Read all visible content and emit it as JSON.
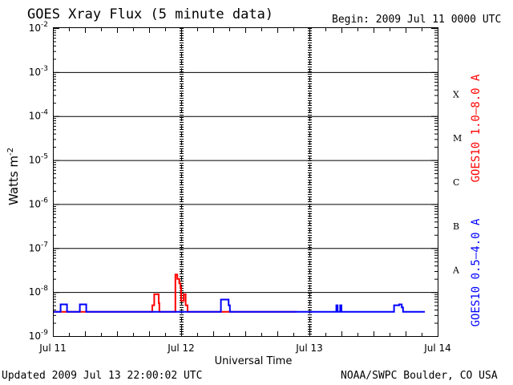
{
  "header": {
    "title": "GOES Xray Flux (5 minute data)",
    "begin": "Begin:  2009 Jul 11 0000 UTC"
  },
  "footer": {
    "updated": "Updated 2009 Jul 13 22:00:02 UTC",
    "credit": "NOAA/SWPC Boulder, CO USA"
  },
  "chart_data": {
    "type": "line",
    "title": "GOES Xray Flux (5 minute data)",
    "xlabel": "Universal Time",
    "ylabel": "Watts m",
    "ylabel_sup": "-2",
    "y_scale": "log",
    "ylim_exp": [
      -9,
      -2
    ],
    "y_ticks": [
      {
        "base": "10",
        "exp": "-9"
      },
      {
        "base": "10",
        "exp": "-8"
      },
      {
        "base": "10",
        "exp": "-7"
      },
      {
        "base": "10",
        "exp": "-6"
      },
      {
        "base": "10",
        "exp": "-5"
      },
      {
        "base": "10",
        "exp": "-4"
      },
      {
        "base": "10",
        "exp": "-3"
      },
      {
        "base": "10",
        "exp": "-2"
      }
    ],
    "xlim_days": [
      0,
      3
    ],
    "x_tick_labels": [
      "Jul 11",
      "Jul 12",
      "Jul 13",
      "Jul 14"
    ],
    "grid": {
      "horizontal": true,
      "vertical_dashed": true
    },
    "flare_classes": [
      {
        "label": "A",
        "log_center": -7.5
      },
      {
        "label": "B",
        "log_center": -6.5
      },
      {
        "label": "C",
        "log_center": -5.5
      },
      {
        "label": "M",
        "log_center": -4.5
      },
      {
        "label": "X",
        "log_center": -3.5
      }
    ],
    "series": [
      {
        "name": "GOES10 1.0–8.0 A",
        "color": "#ff0000",
        "x": [
          0.0,
          0.77,
          0.775,
          0.79,
          0.82,
          0.825,
          0.83,
          0.95,
          0.955,
          0.97,
          0.985,
          0.995,
          1.0,
          1.005,
          1.02,
          1.035,
          1.05,
          1.07,
          1.2,
          1.9
        ],
        "y": [
          -8.45,
          -8.45,
          -8.3,
          -8.05,
          -8.05,
          -8.25,
          -8.45,
          -8.45,
          -7.6,
          -7.7,
          -7.8,
          -7.9,
          -8.2,
          -8.2,
          -8.05,
          -8.3,
          -8.45,
          -8.45,
          -8.45,
          -8.45
        ]
      },
      {
        "name": "GOES10 0.5–4.0 A",
        "color": "#0000ff",
        "x": [
          0.0,
          0.05,
          0.06,
          0.1,
          0.11,
          0.2,
          0.21,
          0.25,
          0.26,
          0.3,
          1.3,
          1.31,
          1.35,
          1.37,
          1.38,
          1.9,
          2.2,
          2.21,
          2.22,
          2.24,
          2.25,
          2.65,
          2.66,
          2.7,
          2.72,
          2.73,
          2.9
        ],
        "y": [
          -8.45,
          -8.45,
          -8.28,
          -8.28,
          -8.45,
          -8.45,
          -8.28,
          -8.28,
          -8.45,
          -8.45,
          -8.45,
          -8.17,
          -8.17,
          -8.3,
          -8.45,
          -8.45,
          -8.45,
          -8.3,
          -8.45,
          -8.3,
          -8.45,
          -8.45,
          -8.3,
          -8.28,
          -8.35,
          -8.45,
          -8.45
        ]
      }
    ],
    "right_labels": [
      {
        "text": "GOES10 1.0–8.0 A",
        "color": "#ff0000"
      },
      {
        "text": "GOES10 0.5–4.0 A",
        "color": "#0000ff"
      }
    ]
  }
}
